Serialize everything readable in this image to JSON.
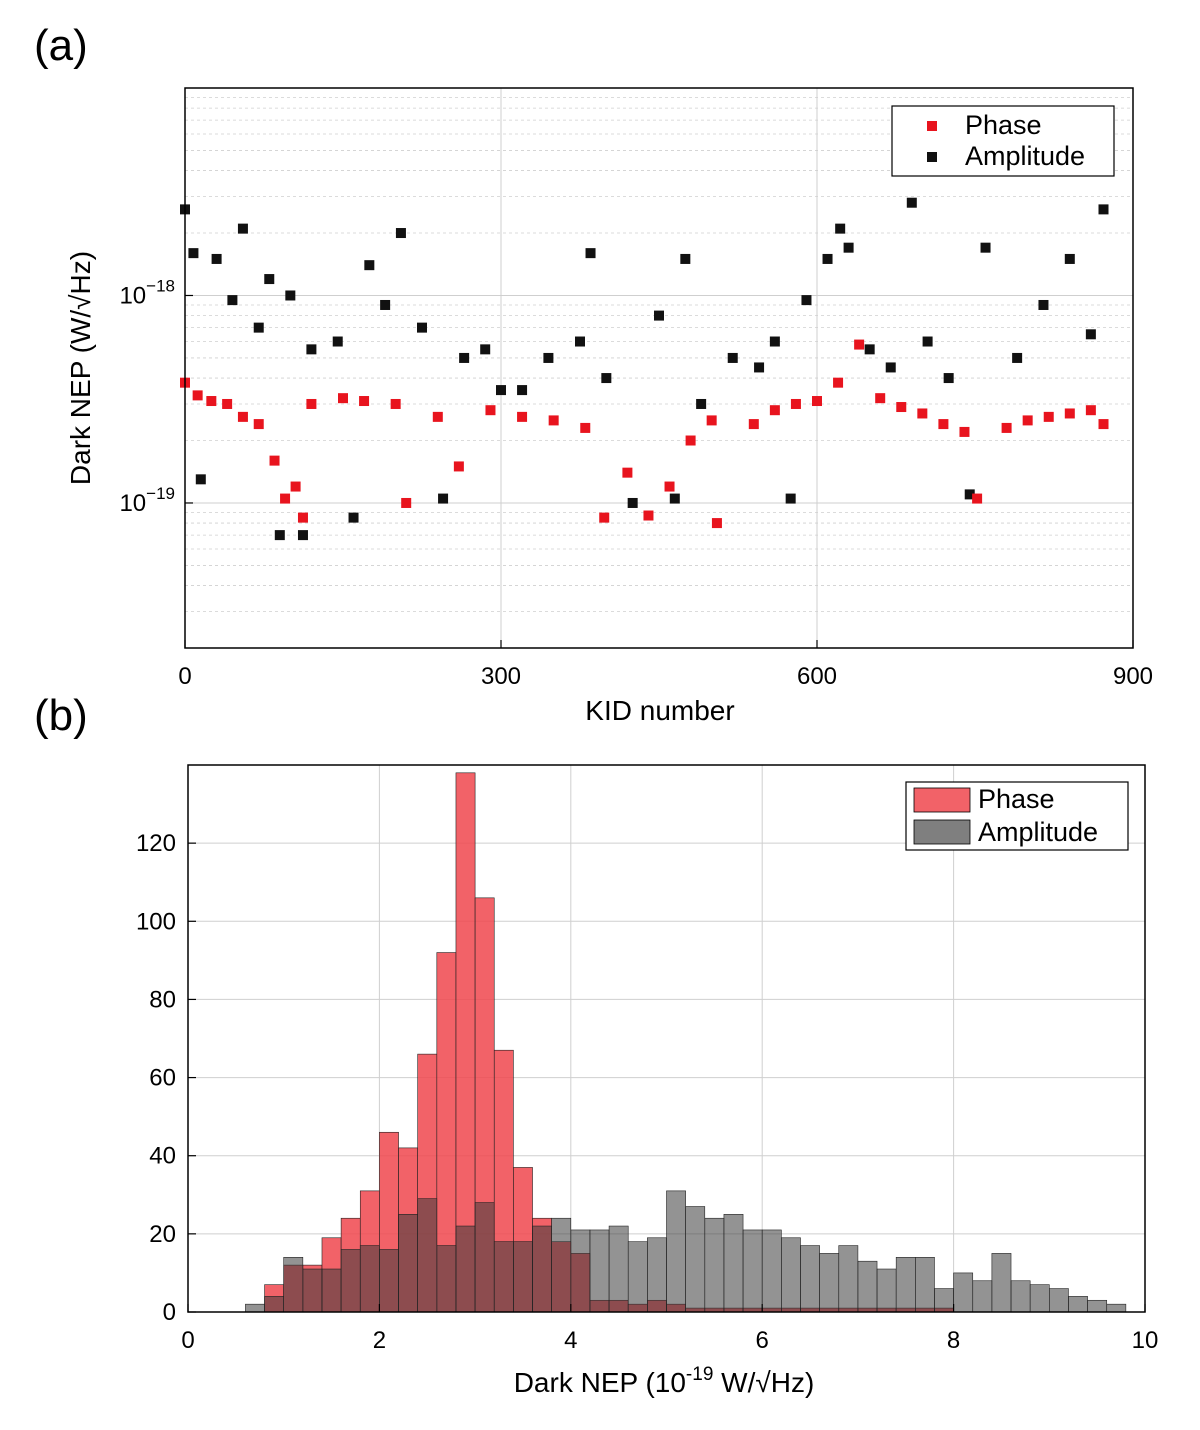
{
  "colors": {
    "phase": "#e8141e",
    "amplitude": "#111111",
    "phase_hist": "#f0474e",
    "amp_hist": "#7f7f7f",
    "grid": "#cfcfcf"
  },
  "chart_data": [
    {
      "panel": "(a)",
      "type": "scatter",
      "xlabel": "KID number",
      "ylabel": "Dark NEP (W/√Hz)",
      "xlim": [
        0,
        900
      ],
      "x_ticks": [
        "0",
        "300",
        "600",
        "900"
      ],
      "yscale": "log",
      "ylim": [
        2e-20,
        1e-17
      ],
      "y_ticks": [
        {
          "base": "10",
          "exp": "−18",
          "value": 1e-18
        },
        {
          "base": "10",
          "exp": "−19",
          "value": 1e-19
        }
      ],
      "grid": true,
      "legend_position": "top-right",
      "series": [
        {
          "name": "Phase",
          "x": [
            0,
            12,
            25,
            40,
            55,
            70,
            85,
            95,
            105,
            112,
            120,
            150,
            170,
            200,
            210,
            240,
            260,
            290,
            320,
            350,
            380,
            398,
            420,
            440,
            460,
            480,
            500,
            505,
            540,
            560,
            580,
            600,
            620,
            640,
            660,
            680,
            700,
            720,
            740,
            752,
            780,
            800,
            820,
            840,
            860,
            872
          ],
          "y": [
            3.8e-19,
            3.3e-19,
            3.1e-19,
            3e-19,
            2.6e-19,
            2.4e-19,
            1.6e-19,
            1.05e-19,
            1.2e-19,
            8.5e-20,
            3e-19,
            3.2e-19,
            3.1e-19,
            3e-19,
            1e-19,
            2.6e-19,
            1.5e-19,
            2.8e-19,
            2.6e-19,
            2.5e-19,
            2.3e-19,
            8.5e-20,
            1.4e-19,
            8.7e-20,
            1.2e-19,
            2e-19,
            2.5e-19,
            8e-20,
            2.4e-19,
            2.8e-19,
            3e-19,
            3.1e-19,
            3.8e-19,
            5.8e-19,
            3.2e-19,
            2.9e-19,
            2.7e-19,
            2.4e-19,
            2.2e-19,
            1.05e-19,
            2.3e-19,
            2.5e-19,
            2.6e-19,
            2.7e-19,
            2.8e-19,
            2.4e-19
          ]
        },
        {
          "name": "Amplitude",
          "x": [
            0,
            8,
            15,
            30,
            45,
            55,
            70,
            80,
            90,
            100,
            112,
            120,
            145,
            160,
            175,
            190,
            205,
            225,
            245,
            265,
            285,
            300,
            320,
            345,
            375,
            385,
            400,
            425,
            450,
            465,
            475,
            490,
            520,
            545,
            560,
            575,
            590,
            610,
            622,
            630,
            650,
            670,
            690,
            705,
            725,
            745,
            760,
            790,
            815,
            840,
            860,
            872
          ],
          "y": [
            2.6e-18,
            1.6e-18,
            1.3e-19,
            1.5e-18,
            9.5e-19,
            2.1e-18,
            7e-19,
            1.2e-18,
            7e-20,
            1e-18,
            7e-20,
            5.5e-19,
            6e-19,
            8.5e-20,
            1.4e-18,
            9e-19,
            2e-18,
            7e-19,
            1.05e-19,
            5e-19,
            5.5e-19,
            3.5e-19,
            3.5e-19,
            5e-19,
            6e-19,
            1.6e-18,
            4e-19,
            1e-19,
            8e-19,
            1.05e-19,
            1.5e-18,
            3e-19,
            5e-19,
            4.5e-19,
            6e-19,
            1.05e-19,
            9.5e-19,
            1.5e-18,
            2.1e-18,
            1.7e-18,
            5.5e-19,
            4.5e-19,
            2.8e-18,
            6e-19,
            4e-19,
            1.1e-19,
            1.7e-18,
            5e-19,
            9e-19,
            1.5e-18,
            6.5e-19,
            2.6e-18
          ]
        }
      ]
    },
    {
      "panel": "(b)",
      "type": "bar",
      "subtype": "histogram-overlay",
      "xlabel_main": "Dark NEP  (10",
      "xlabel_exp": "-19",
      "xlabel_unit": " W/√Hz)",
      "ylabel": "",
      "xlim": [
        0,
        10
      ],
      "ylim": [
        0,
        140
      ],
      "x_ticks": [
        "0",
        "2",
        "4",
        "6",
        "8",
        "10"
      ],
      "y_ticks": [
        "0",
        "20",
        "40",
        "60",
        "80",
        "100",
        "120"
      ],
      "bin_width": 0.2,
      "grid": true,
      "legend_position": "top-right",
      "series": [
        {
          "name": "Phase",
          "bin_start": 0.4,
          "values": [
            0,
            0,
            7,
            12,
            12,
            19,
            24,
            31,
            46,
            42,
            66,
            92,
            138,
            106,
            67,
            37,
            24,
            18,
            15,
            3,
            3,
            2,
            3,
            2,
            1,
            1,
            1,
            1,
            1,
            1,
            1,
            1,
            1,
            1,
            1,
            1,
            1,
            1,
            0,
            0,
            0,
            0,
            0,
            0,
            0,
            0,
            0,
            0
          ]
        },
        {
          "name": "Amplitude",
          "bin_start": 0.4,
          "values": [
            0,
            2,
            4,
            14,
            11,
            11,
            16,
            17,
            16,
            25,
            29,
            17,
            22,
            28,
            18,
            18,
            22,
            24,
            21,
            21,
            22,
            18,
            19,
            31,
            27,
            24,
            25,
            21,
            21,
            19,
            17,
            15,
            17,
            13,
            11,
            14,
            14,
            6,
            10,
            8,
            15,
            8,
            7,
            6,
            4,
            3,
            2,
            0
          ]
        }
      ]
    }
  ]
}
